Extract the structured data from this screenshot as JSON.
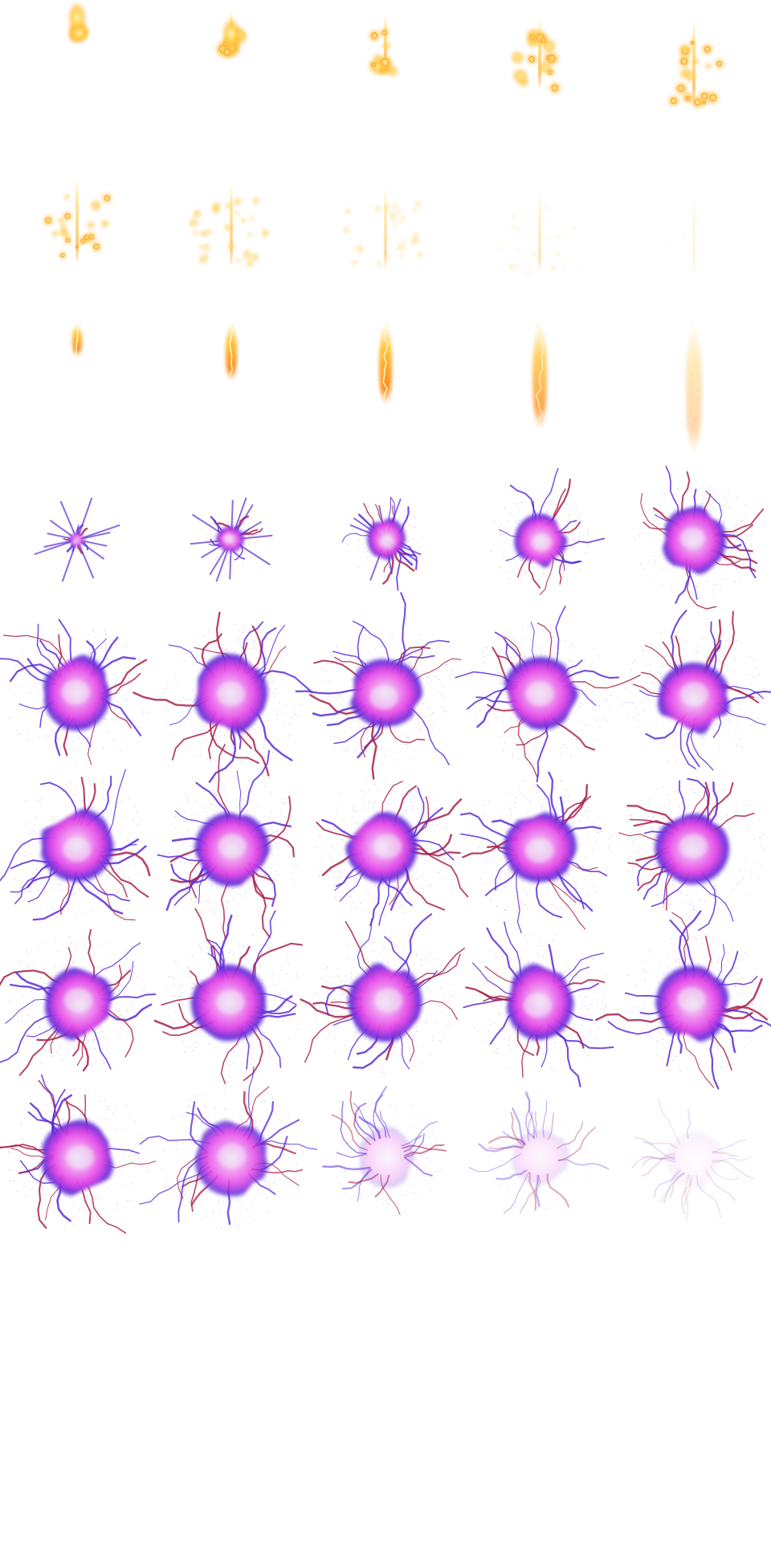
{
  "sprite_sheet": {
    "columns": 5,
    "rows": 10,
    "background": "#ffffff",
    "animations": [
      {
        "name": "fire-sparks",
        "frames": 10,
        "colors": {
          "core": "#fffbe0",
          "mid": "#ffd23f",
          "outer": "#ff9a1f"
        }
      },
      {
        "name": "flame-streak",
        "frames": 5,
        "colors": {
          "core": "#fff6c8",
          "mid": "#ffc43a",
          "outer": "#ff8c1a"
        }
      },
      {
        "name": "magic-burst",
        "frames": 25,
        "colors": {
          "core": "#f2e8f6",
          "mid": "#e040e6",
          "outer": "#5b2cd8",
          "tendril": "#a8204a"
        }
      }
    ]
  }
}
